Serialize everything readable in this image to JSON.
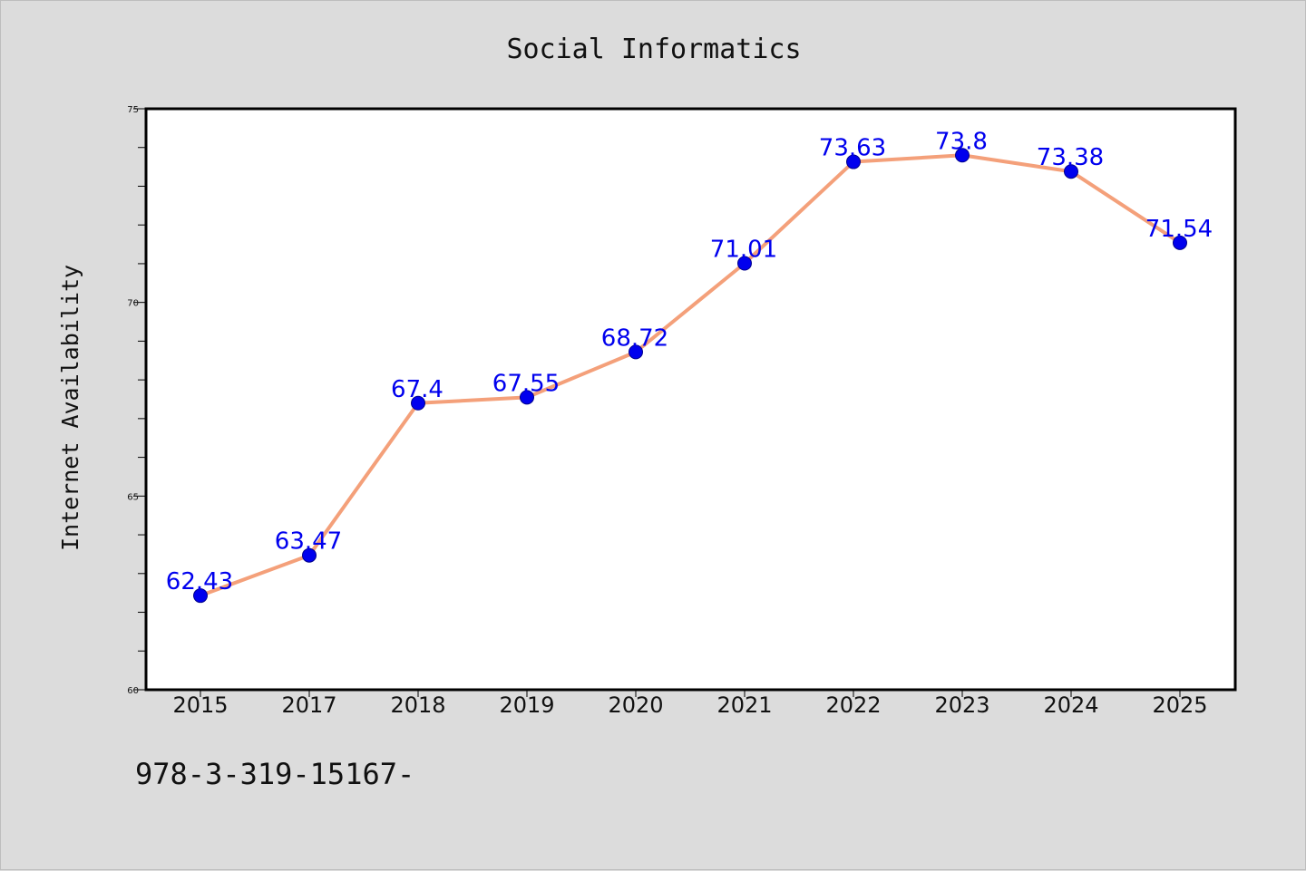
{
  "chart_data": {
    "type": "line",
    "title": "Social Informatics",
    "xlabel": "",
    "ylabel": "Internet Availability",
    "categories": [
      "2015",
      "2017",
      "2018",
      "2019",
      "2020",
      "2021",
      "2022",
      "2023",
      "2024",
      "2025"
    ],
    "values": [
      62.43,
      63.47,
      67.4,
      67.55,
      68.72,
      71.01,
      73.63,
      73.8,
      73.38,
      71.54
    ],
    "data_labels": [
      "62.43",
      "63.47",
      "67.4",
      "67.55",
      "68.72",
      "71.01",
      "73.63",
      "73.8",
      "73.38",
      "71.54"
    ],
    "ylim": [
      60,
      75
    ],
    "y_ticks": [
      "60",
      "65",
      "70",
      "75"
    ],
    "grid": false,
    "line_color": "#f4a07a",
    "marker_color": "#0000ee",
    "label_color": "#0000ee",
    "plot_background": "#ffffff",
    "page_background": "#dcdcdc"
  },
  "footer_text": "978-3-319-15167-"
}
